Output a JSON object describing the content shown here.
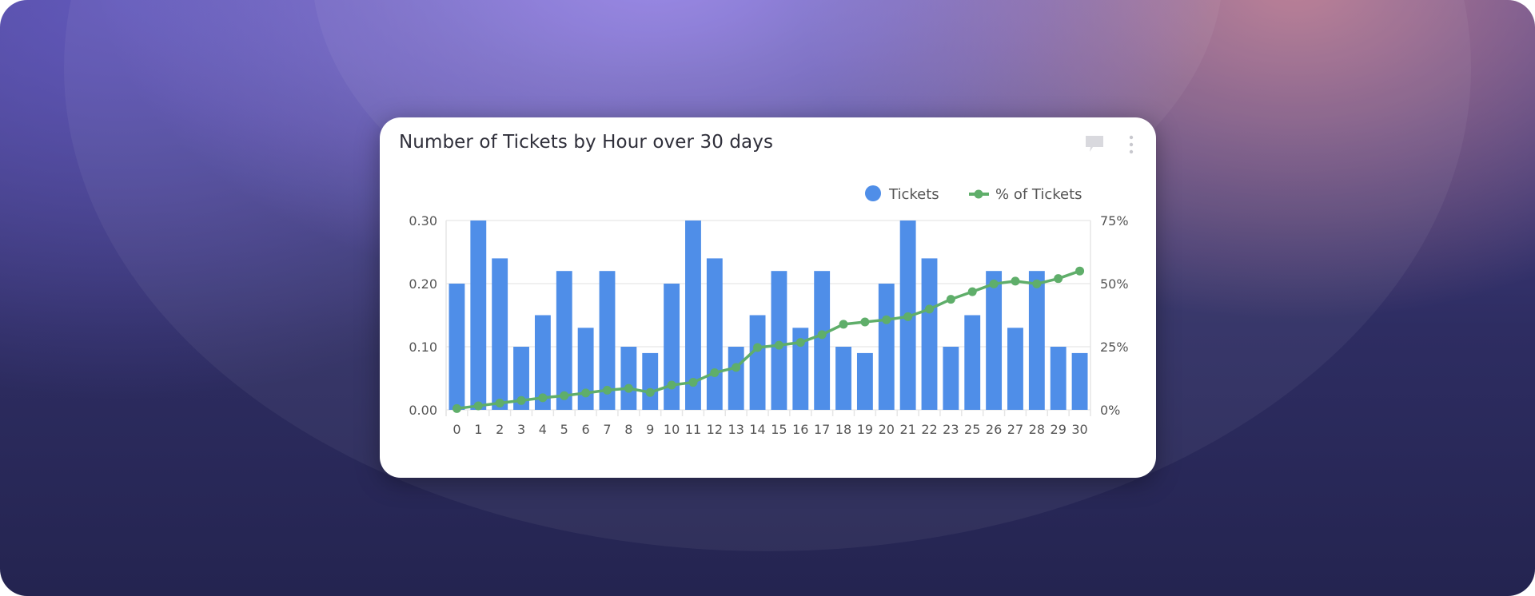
{
  "card": {
    "title": "Number of Tickets by Hour over 30 days",
    "icons": [
      "comment-icon",
      "more-vertical-icon"
    ]
  },
  "chart_data": {
    "type": "bar+line",
    "title": "Number of Tickets by Hour over 30 days",
    "categories": [
      "0",
      "1",
      "2",
      "3",
      "4",
      "5",
      "6",
      "7",
      "8",
      "9",
      "10",
      "11",
      "12",
      "13",
      "14",
      "15",
      "16",
      "17",
      "18",
      "19",
      "20",
      "21",
      "22",
      "23",
      "25",
      "26",
      "27",
      "28",
      "29",
      "30"
    ],
    "series": [
      {
        "name": "Tickets",
        "type": "bar",
        "axis": "left",
        "color": "#4f8ee8",
        "values": [
          0.2,
          0.3,
          0.24,
          0.1,
          0.15,
          0.22,
          0.13,
          0.22,
          0.1,
          0.09,
          0.2,
          0.3,
          0.24,
          0.1,
          0.15,
          0.22,
          0.13,
          0.22,
          0.1,
          0.09,
          0.2,
          0.3,
          0.24,
          0.1,
          0.15,
          0.22,
          0.13,
          0.22,
          0.1,
          0.09
        ]
      },
      {
        "name": "% of Tickets",
        "type": "line",
        "axis": "right",
        "color": "#5fae6a",
        "values": [
          0.5,
          1.6,
          2.7,
          3.7,
          4.8,
          5.6,
          6.7,
          7.8,
          8.5,
          6.9,
          9.8,
          10.9,
          14.7,
          16.8,
          24.7,
          25.6,
          26.7,
          29.8,
          33.9,
          34.8,
          35.7,
          36.9,
          39.9,
          43.8,
          46.8,
          49.9,
          51.0,
          49.9,
          52.0,
          55.0
        ]
      }
    ],
    "y_left": {
      "range": [
        0,
        0.3
      ],
      "ticks": [
        "0.00",
        "0.10",
        "0.20",
        "0.30"
      ]
    },
    "y_right": {
      "range": [
        0,
        75
      ],
      "ticks": [
        "0%",
        "25%",
        "50%",
        "75%"
      ]
    },
    "grid": true,
    "legend": "top-right"
  }
}
